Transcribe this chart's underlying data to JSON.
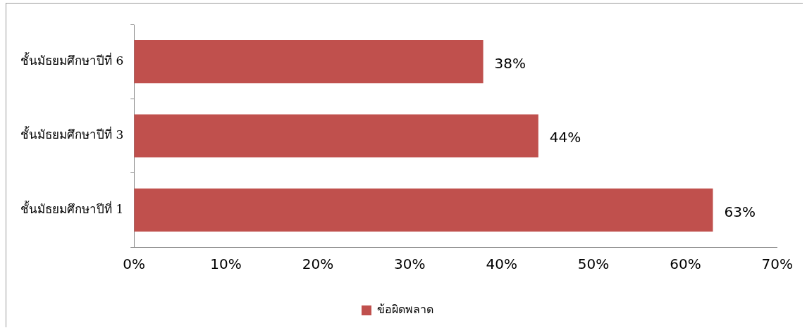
{
  "chart_data": {
    "type": "bar",
    "orientation": "horizontal",
    "categories": [
      "ชั้นมัธยมศึกษาปีที่ 6",
      "ชั้นมัธยมศึกษาปีที่ 3",
      "ชั้นมัธยมศึกษาปีที่ 1"
    ],
    "series": [
      {
        "name": "ข้อผิดพลาด",
        "color": "#c0504d",
        "values": [
          38,
          44,
          63
        ],
        "value_labels": [
          "38%",
          "44%",
          "63%"
        ]
      }
    ],
    "xlim": [
      0,
      70
    ],
    "xticks": [
      {
        "value": 0,
        "label": "0%"
      },
      {
        "value": 10,
        "label": "10%"
      },
      {
        "value": 20,
        "label": "20%"
      },
      {
        "value": 30,
        "label": "30%"
      },
      {
        "value": 40,
        "label": "40%"
      },
      {
        "value": 50,
        "label": "50%"
      },
      {
        "value": 60,
        "label": "60%"
      },
      {
        "value": 70,
        "label": "70%"
      }
    ],
    "grid": false,
    "legend": "bottom"
  }
}
